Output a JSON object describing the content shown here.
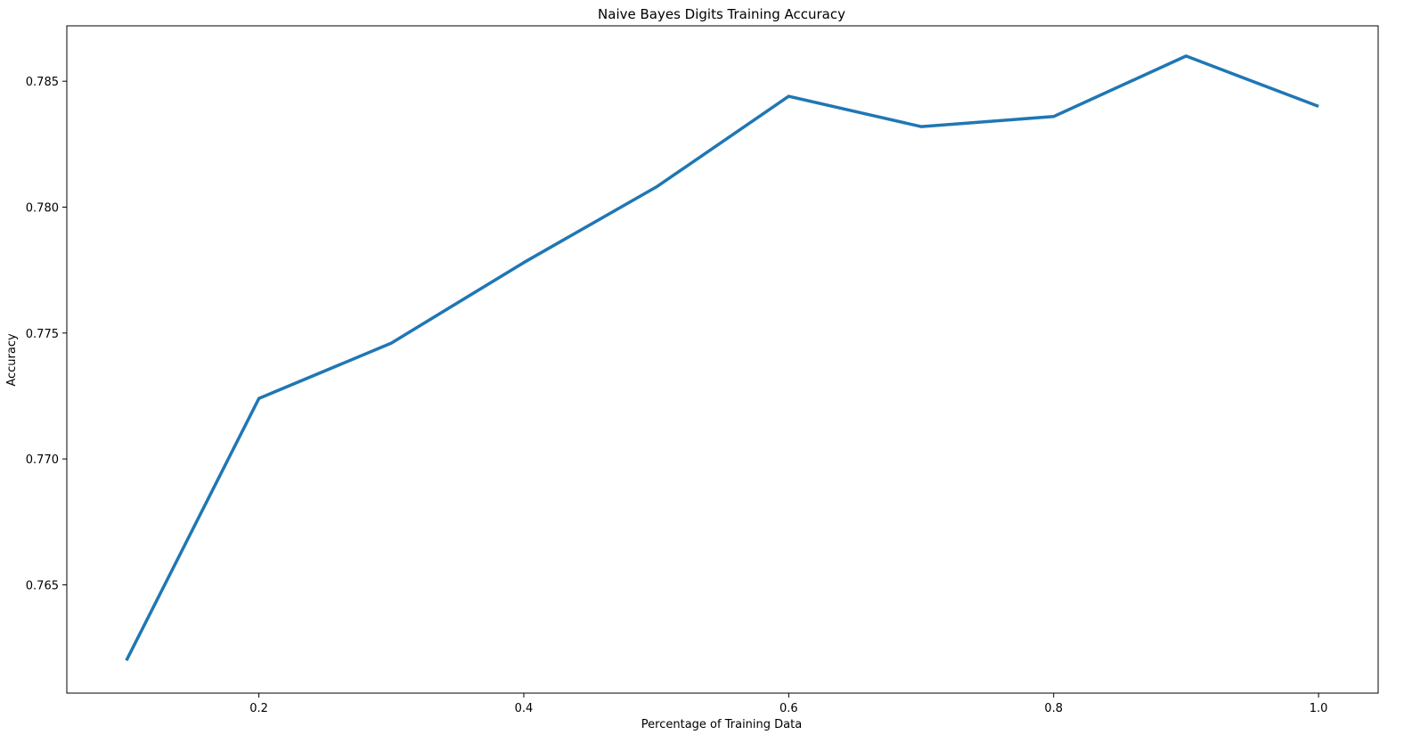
{
  "chart_data": {
    "type": "line",
    "title": "Naive Bayes Digits Training Accuracy",
    "xlabel": "Percentage of Training Data",
    "ylabel": "Accuracy",
    "xlim": [
      0.055,
      1.045
    ],
    "ylim": [
      0.7607,
      0.7872
    ],
    "xticks": [
      0.2,
      0.4,
      0.6,
      0.8,
      1.0
    ],
    "xtick_labels": [
      "0.2",
      "0.4",
      "0.6",
      "0.8",
      "1.0"
    ],
    "yticks": [
      0.765,
      0.77,
      0.775,
      0.78,
      0.785
    ],
    "ytick_labels": [
      "0.765",
      "0.770",
      "0.775",
      "0.780",
      "0.785"
    ],
    "grid": false,
    "series": [
      {
        "color": "#1f77b4",
        "x": [
          0.1,
          0.2,
          0.3,
          0.4,
          0.5,
          0.6,
          0.7,
          0.8,
          0.9,
          1.0
        ],
        "y": [
          0.762,
          0.7724,
          0.7746,
          0.7778,
          0.7808,
          0.7844,
          0.7832,
          0.7836,
          0.786,
          0.784
        ]
      }
    ]
  }
}
